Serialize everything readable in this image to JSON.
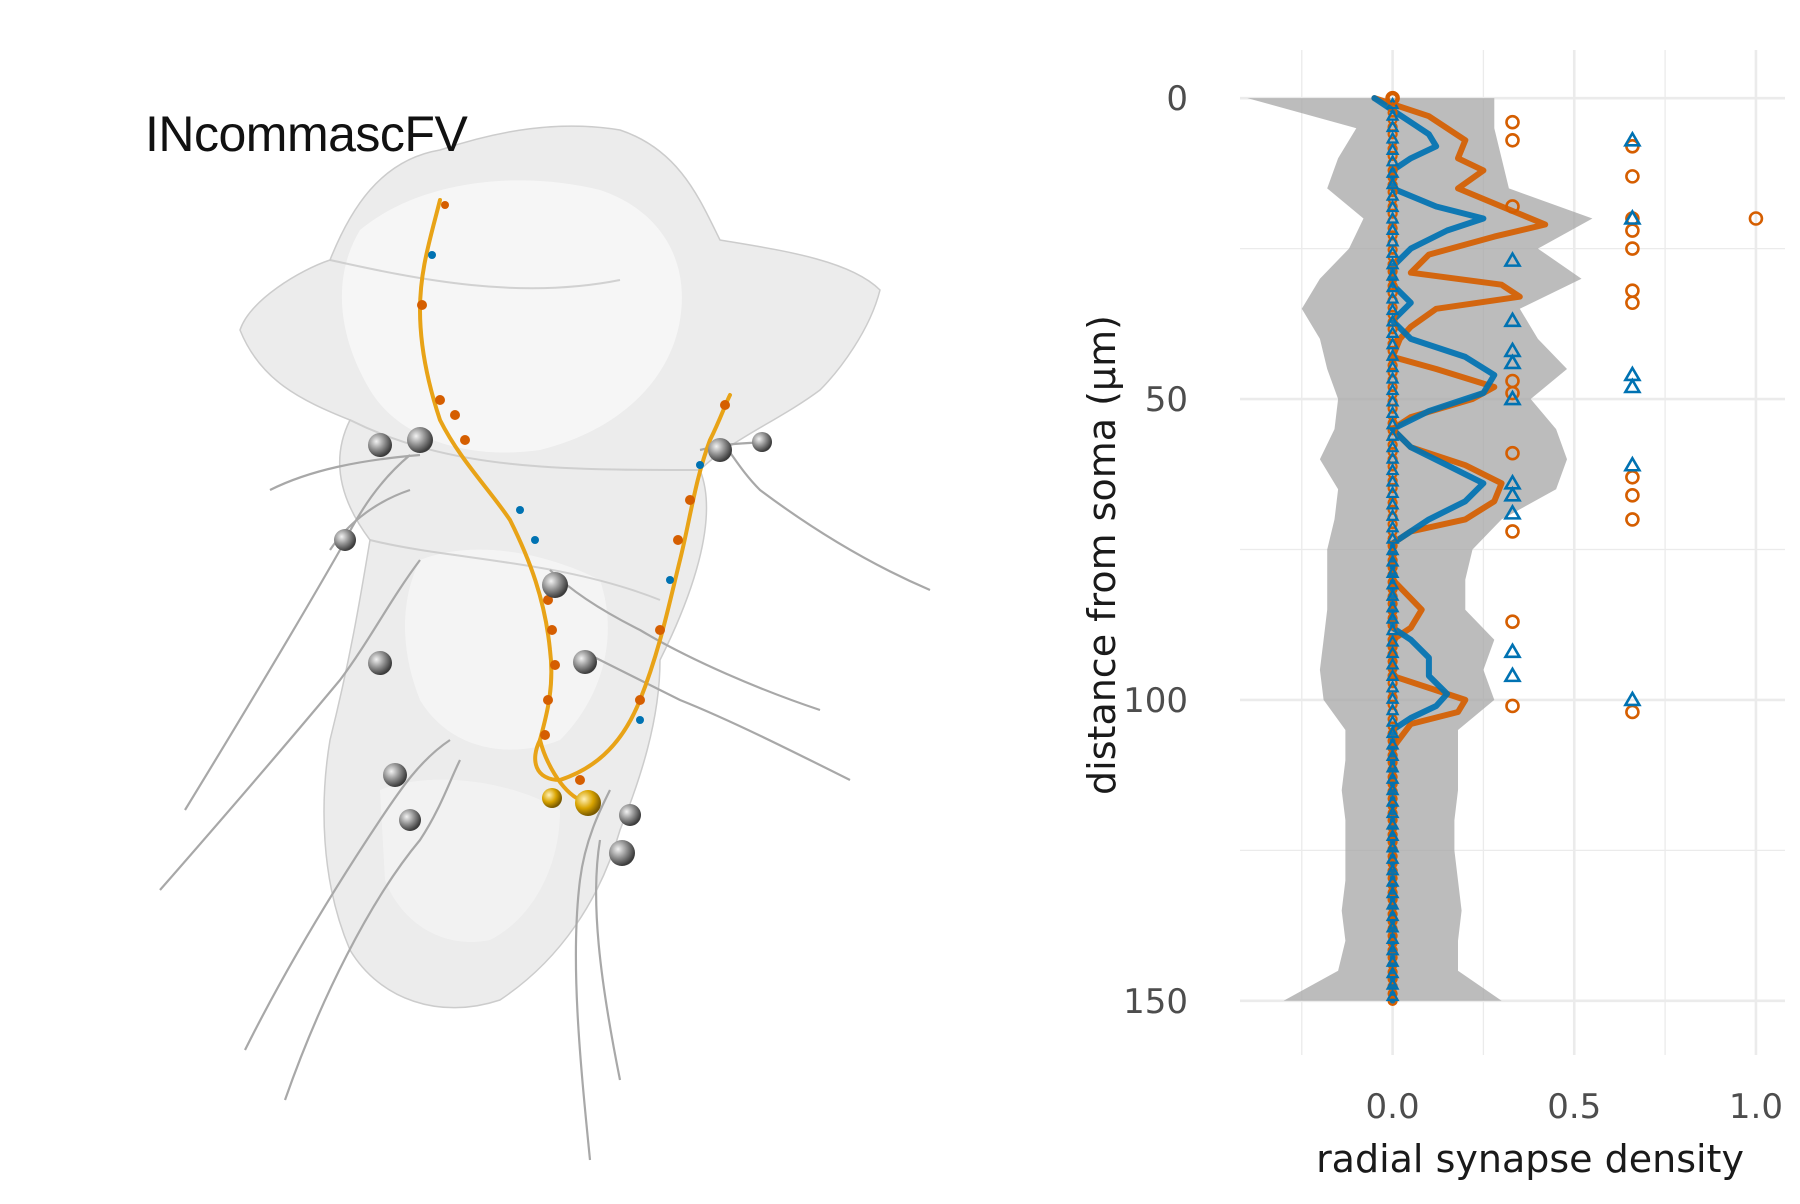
{
  "figure": {
    "neuron_label": "INcommascFV"
  },
  "chart_data": {
    "type": "line",
    "orientation": "vertical",
    "title": "",
    "xlabel": "radial synapse density",
    "ylabel": "distance from soma (µm)",
    "xlim": [
      -0.42,
      1.08
    ],
    "ylim": [
      159,
      -8
    ],
    "y_reversed": true,
    "x_ticks": [
      0.0,
      0.5,
      1.0
    ],
    "x_tick_labels": [
      "0.0",
      "0.5",
      "1.0"
    ],
    "y_ticks": [
      0,
      50,
      100,
      150
    ],
    "y_tick_labels": [
      "0",
      "50",
      "100",
      "150"
    ],
    "grid": true,
    "legend": "none",
    "colors": {
      "orange": "#D55E00",
      "blue": "#0072B2",
      "ribbon": "#A6A6A6",
      "grid": "#EBEBEB"
    },
    "ribbon": {
      "y": [
        0,
        5,
        10,
        15,
        20,
        25,
        30,
        35,
        40,
        45,
        50,
        55,
        60,
        65,
        70,
        75,
        80,
        85,
        90,
        95,
        100,
        105,
        110,
        115,
        120,
        125,
        130,
        135,
        140,
        145,
        150
      ],
      "lower": [
        -0.4,
        -0.1,
        -0.15,
        -0.18,
        -0.08,
        -0.12,
        -0.2,
        -0.25,
        -0.2,
        -0.18,
        -0.15,
        -0.16,
        -0.2,
        -0.15,
        -0.16,
        -0.18,
        -0.18,
        -0.18,
        -0.19,
        -0.2,
        -0.19,
        -0.13,
        -0.13,
        -0.14,
        -0.13,
        -0.13,
        -0.13,
        -0.14,
        -0.13,
        -0.15,
        -0.3
      ],
      "upper": [
        0.28,
        0.28,
        0.3,
        0.32,
        0.55,
        0.4,
        0.52,
        0.35,
        0.4,
        0.48,
        0.38,
        0.45,
        0.48,
        0.45,
        0.3,
        0.22,
        0.2,
        0.2,
        0.28,
        0.25,
        0.28,
        0.18,
        0.18,
        0.18,
        0.17,
        0.17,
        0.18,
        0.19,
        0.18,
        0.18,
        0.3
      ]
    },
    "series": [
      {
        "color": "#D55E00",
        "y": [
          0,
          3,
          7,
          10,
          12,
          15,
          18,
          21,
          23,
          26,
          29,
          31,
          33,
          35,
          38,
          40,
          43,
          45,
          48,
          50,
          53,
          55,
          58,
          61,
          64,
          67,
          70,
          72,
          74,
          80,
          85,
          88,
          90,
          93,
          96,
          98,
          100,
          102,
          104,
          108,
          150
        ],
        "x": [
          -0.05,
          0.1,
          0.2,
          0.18,
          0.25,
          0.18,
          0.3,
          0.42,
          0.28,
          0.1,
          0.05,
          0.3,
          0.35,
          0.12,
          0.05,
          0.02,
          0.0,
          0.12,
          0.28,
          0.22,
          0.05,
          0.0,
          0.05,
          0.2,
          0.3,
          0.28,
          0.2,
          0.05,
          0.0,
          0.0,
          0.08,
          0.05,
          0.0,
          0.0,
          0.0,
          0.1,
          0.2,
          0.18,
          0.05,
          0.0,
          0.0
        ]
      },
      {
        "color": "#0072B2",
        "y": [
          0,
          2,
          4,
          6,
          8,
          10,
          12,
          15,
          18,
          20,
          22,
          25,
          28,
          31,
          34,
          37,
          40,
          43,
          46,
          49,
          52,
          55,
          58,
          61,
          64,
          67,
          70,
          72,
          74,
          80,
          85,
          88,
          90,
          93,
          96,
          99,
          101,
          103,
          105,
          150
        ],
        "x": [
          -0.05,
          0.0,
          0.05,
          0.1,
          0.12,
          0.05,
          0.0,
          0.0,
          0.12,
          0.25,
          0.15,
          0.05,
          0.0,
          0.0,
          0.05,
          0.0,
          0.05,
          0.2,
          0.28,
          0.25,
          0.1,
          0.0,
          0.05,
          0.15,
          0.25,
          0.2,
          0.1,
          0.05,
          0.0,
          0.0,
          0.0,
          0.0,
          0.05,
          0.1,
          0.1,
          0.15,
          0.12,
          0.05,
          0.0,
          0.0
        ]
      }
    ],
    "points_orange": [
      [
        0,
        0
      ],
      [
        0.33,
        4
      ],
      [
        0.33,
        7
      ],
      [
        0.66,
        8
      ],
      [
        0.66,
        13
      ],
      [
        0.33,
        18
      ],
      [
        0.66,
        20
      ],
      [
        0.66,
        22
      ],
      [
        1.0,
        20
      ],
      [
        0.66,
        25
      ],
      [
        0.66,
        32
      ],
      [
        0.66,
        34
      ],
      [
        0.33,
        47
      ],
      [
        0.33,
        49
      ],
      [
        0.33,
        59
      ],
      [
        0.66,
        63
      ],
      [
        0.66,
        66
      ],
      [
        0.66,
        70
      ],
      [
        0.33,
        72
      ],
      [
        0.33,
        87
      ],
      [
        0.33,
        101
      ],
      [
        0.66,
        102
      ]
    ],
    "points_blue": [
      [
        0.66,
        7
      ],
      [
        0.66,
        20
      ],
      [
        0.33,
        27
      ],
      [
        0.33,
        37
      ],
      [
        0.33,
        42
      ],
      [
        0.33,
        44
      ],
      [
        0.66,
        46
      ],
      [
        0.66,
        48
      ],
      [
        0.33,
        50
      ],
      [
        0.66,
        61
      ],
      [
        0.33,
        64
      ],
      [
        0.33,
        66
      ],
      [
        0.33,
        69
      ],
      [
        0.33,
        92
      ],
      [
        0.33,
        96
      ],
      [
        0.66,
        100
      ]
    ]
  }
}
